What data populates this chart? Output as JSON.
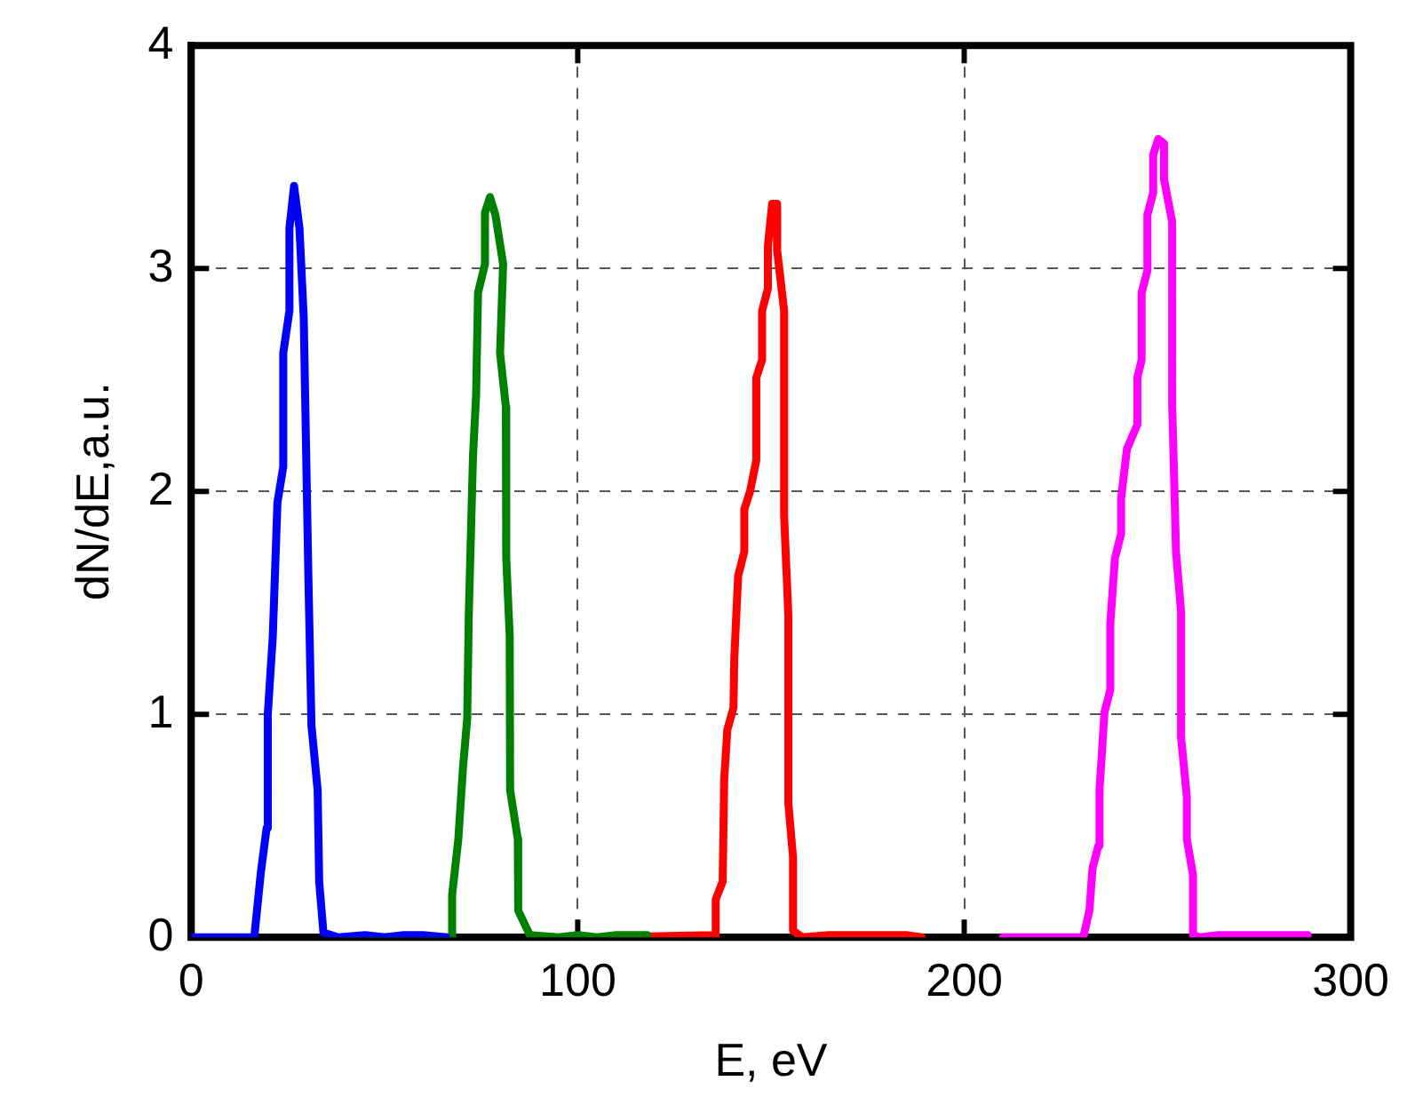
{
  "chart_data": {
    "type": "line",
    "xlabel": "E, eV",
    "ylabel": "dN/dE,a.u.",
    "xlim": [
      0,
      300
    ],
    "xticks": [
      0,
      100,
      200,
      300
    ],
    "ylim": [
      0,
      4
    ],
    "yticks": [
      0,
      1,
      2,
      3,
      4
    ],
    "grid": true,
    "legend": false,
    "marker": "none",
    "line_style": "solid",
    "series": [
      {
        "color": "#0000ff",
        "x": [
          0,
          16.3,
          18.0,
          19.5,
          19.8,
          21.1,
          22.3,
          23.8,
          23.8,
          25.4,
          25.4,
          26.6,
          28.0,
          29.1,
          30.3,
          31.1,
          32.7,
          33.1,
          34.2,
          38.1,
          45,
          50,
          55,
          60,
          66
        ],
        "values": [
          0,
          0,
          0.29,
          0.49,
          1.0,
          1.35,
          1.95,
          2.11,
          2.62,
          2.81,
          3.18,
          3.37,
          3.18,
          2.78,
          1.62,
          0.95,
          0.66,
          0.25,
          0.02,
          0,
          0.01,
          0,
          0.01,
          0.01,
          0
        ]
      },
      {
        "color": "#008000",
        "x": [
          39.5,
          67.5,
          67.5,
          69.1,
          70.3,
          71.4,
          71.8,
          72.9,
          73.7,
          74.2,
          76.0,
          76.0,
          77.3,
          78.7,
          80.7,
          79.9,
          81.4,
          81.5,
          82.4,
          82.5,
          84.5,
          84.6,
          87.6,
          95,
          100,
          105,
          110,
          118
        ],
        "values": [
          0,
          0,
          0.19,
          0.44,
          0.76,
          0.98,
          1.44,
          2.16,
          2.43,
          2.89,
          3.02,
          3.25,
          3.32,
          3.24,
          3.02,
          2.62,
          2.38,
          1.7,
          1.35,
          0.66,
          0.44,
          0.12,
          0.01,
          0,
          0.01,
          0,
          0.01,
          0.01
        ]
      },
      {
        "color": "#ff0000",
        "x": [
          108.7,
          135.6,
          135.7,
          137.5,
          137.9,
          138.7,
          140.3,
          140.5,
          141.5,
          143.1,
          143.1,
          144.6,
          146.2,
          146.2,
          147.7,
          147.7,
          149.2,
          149.2,
          150.3,
          151.4,
          151.6,
          153.4,
          153.4,
          154.5,
          154.5,
          155.7,
          155.7,
          158.1,
          165,
          175,
          185,
          189
        ],
        "values": [
          0,
          0.01,
          0.17,
          0.25,
          0.71,
          0.93,
          1.03,
          1.25,
          1.62,
          1.73,
          1.92,
          2.0,
          2.14,
          2.51,
          2.59,
          2.81,
          2.91,
          3.1,
          3.29,
          3.29,
          3.08,
          2.81,
          1.89,
          1.44,
          0.6,
          0.36,
          0.03,
          0,
          0.01,
          0.01,
          0.01,
          0
        ]
      },
      {
        "color": "#ff00ff",
        "x": [
          210,
          230.8,
          232.4,
          233.2,
          234.7,
          235.0,
          236.3,
          237.8,
          237.8,
          239.0,
          240.6,
          240.6,
          242.1,
          244.8,
          244.8,
          245.9,
          245.9,
          247.4,
          247.4,
          248.9,
          248.9,
          250.2,
          251.7,
          251.7,
          253.8,
          253.8,
          254.8,
          256.1,
          256.1,
          257.6,
          257.6,
          259.2,
          259.2,
          261,
          265.7,
          288.9
        ],
        "values": [
          0,
          0,
          0.12,
          0.31,
          0.41,
          0.66,
          1.01,
          1.11,
          1.41,
          1.7,
          1.81,
          1.97,
          2.19,
          2.3,
          2.51,
          2.59,
          2.89,
          2.99,
          3.24,
          3.34,
          3.51,
          3.58,
          3.56,
          3.4,
          3.21,
          2.4,
          1.73,
          1.46,
          0.9,
          0.63,
          0.44,
          0.28,
          0.01,
          0,
          0.01,
          0.01
        ]
      }
    ]
  }
}
